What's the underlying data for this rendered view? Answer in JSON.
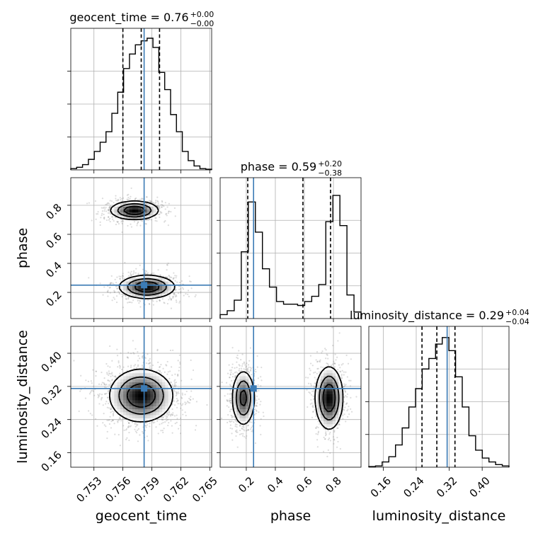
{
  "chart_data": {
    "type": "corner",
    "parameters": [
      "geocent_time",
      "phase",
      "luminosity_distance"
    ],
    "truth_color": "#3b7bb5",
    "truths": {
      "geocent_time": 0.7582,
      "phase": 0.25,
      "luminosity_distance": 0.315
    },
    "ranges": {
      "geocent_time": [
        0.7506,
        0.7652
      ],
      "phase": [
        0.02,
        0.99
      ],
      "luminosity_distance": [
        0.125,
        0.465
      ]
    },
    "ticks": {
      "geocent_time": {
        "values": [
          0.753,
          0.756,
          0.759,
          0.762,
          0.765
        ],
        "labels": [
          "0.753",
          "0.756",
          "0.759",
          "0.762",
          "0.765"
        ]
      },
      "phase": {
        "values": [
          0.2,
          0.4,
          0.6,
          0.8
        ],
        "labels": [
          "0.2",
          "0.4",
          "0.6",
          "0.8"
        ]
      },
      "luminosity_distance": {
        "values": [
          0.16,
          0.24,
          0.32,
          0.4
        ],
        "labels": [
          "0.16",
          "0.24",
          "0.32",
          "0.40"
        ]
      }
    },
    "marginals": [
      {
        "parameter": "geocent_time",
        "title_main": "geocent_time = 0.76",
        "title_sup": "+0.00",
        "title_sub": "−0.00",
        "quantiles": [
          0.756,
          0.7579,
          0.7598
        ],
        "counts": [
          0.01,
          0.02,
          0.04,
          0.08,
          0.14,
          0.21,
          0.29,
          0.43,
          0.59,
          0.77,
          0.88,
          0.95,
          0.98,
          1.0,
          0.93,
          0.74,
          0.61,
          0.42,
          0.29,
          0.14,
          0.07,
          0.03,
          0.01,
          0.005
        ]
      },
      {
        "parameter": "phase",
        "title_main": "phase = 0.59",
        "title_sup": "+0.20",
        "title_sub": "−0.38",
        "quantiles": [
          0.21,
          0.59,
          0.78
        ],
        "counts": [
          0.03,
          0.06,
          0.14,
          0.51,
          0.89,
          0.66,
          0.38,
          0.24,
          0.13,
          0.11,
          0.11,
          0.1,
          0.13,
          0.17,
          0.26,
          0.74,
          0.94,
          0.71,
          0.18,
          0.05
        ]
      },
      {
        "parameter": "luminosity_distance",
        "title_main": "luminosity_distance = 0.29",
        "title_sup": "+0.04",
        "title_sub": "−0.04",
        "quantiles": [
          0.254,
          0.29,
          0.334
        ],
        "counts": [
          0.005,
          0.01,
          0.04,
          0.08,
          0.17,
          0.3,
          0.46,
          0.6,
          0.75,
          0.83,
          0.94,
          0.99,
          0.89,
          0.69,
          0.46,
          0.24,
          0.13,
          0.07,
          0.04,
          0.02,
          0.01
        ]
      }
    ],
    "joints": [
      {
        "x": "geocent_time",
        "y": "phase",
        "modes": [
          {
            "cx": 0.7572,
            "cy": 0.765,
            "sx": 0.00125,
            "sy": 0.032,
            "w": 1.0
          },
          {
            "cx": 0.7585,
            "cy": 0.238,
            "sx": 0.00145,
            "sy": 0.04,
            "w": 1.0
          }
        ]
      },
      {
        "x": "geocent_time",
        "y": "luminosity_distance",
        "modes": [
          {
            "cx": 0.7579,
            "cy": 0.298,
            "sx": 0.00165,
            "sy": 0.032,
            "w": 1.0
          }
        ]
      },
      {
        "x": "phase",
        "y": "luminosity_distance",
        "modes": [
          {
            "cx": 0.18,
            "cy": 0.292,
            "sx": 0.04,
            "sy": 0.034,
            "w": 0.8
          },
          {
            "cx": 0.77,
            "cy": 0.292,
            "sx": 0.048,
            "sy": 0.038,
            "w": 1.0
          }
        ]
      }
    ]
  }
}
